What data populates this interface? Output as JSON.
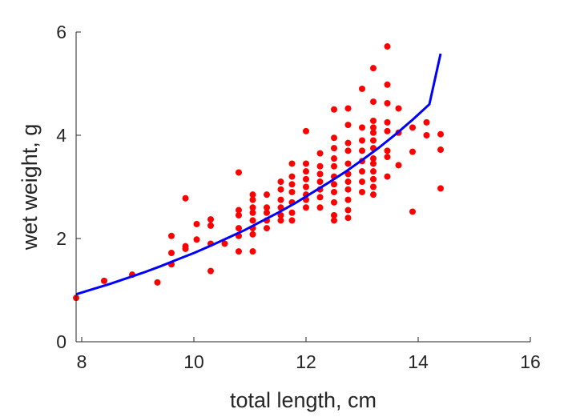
{
  "chart_data": {
    "type": "scatter",
    "xlabel": "total length, cm",
    "ylabel": "wet weight, g",
    "xlim": [
      7.9,
      16
    ],
    "ylim": [
      0,
      6
    ],
    "x_ticks": [
      "8",
      "10",
      "12",
      "14",
      "16"
    ],
    "y_ticks": [
      "0",
      "2",
      "4",
      "6"
    ],
    "x_tick_values": [
      8,
      10,
      12,
      14,
      16
    ],
    "y_tick_values": [
      0,
      2,
      4,
      6
    ],
    "grid": false,
    "legend": "none",
    "series": [
      {
        "kind": "scatter",
        "color": "#ff0000",
        "points": [
          [
            7.9,
            0.85
          ],
          [
            8.4,
            1.18
          ],
          [
            8.9,
            1.3
          ],
          [
            9.35,
            1.15
          ],
          [
            9.6,
            2.05
          ],
          [
            9.6,
            1.72
          ],
          [
            9.6,
            1.5
          ],
          [
            9.85,
            2.78
          ],
          [
            9.85,
            1.85
          ],
          [
            9.85,
            1.8
          ],
          [
            10.05,
            2.28
          ],
          [
            10.05,
            1.98
          ],
          [
            10.3,
            2.37
          ],
          [
            10.3,
            2.25
          ],
          [
            10.3,
            1.9
          ],
          [
            10.3,
            1.37
          ],
          [
            10.55,
            1.9
          ],
          [
            10.8,
            3.28
          ],
          [
            10.8,
            2.55
          ],
          [
            10.8,
            2.45
          ],
          [
            10.8,
            2.2
          ],
          [
            10.8,
            2.05
          ],
          [
            10.8,
            1.75
          ],
          [
            11.05,
            2.85
          ],
          [
            11.05,
            2.75
          ],
          [
            11.05,
            2.6
          ],
          [
            11.05,
            2.5
          ],
          [
            11.05,
            2.35
          ],
          [
            11.05,
            2.2
          ],
          [
            11.05,
            2.08
          ],
          [
            11.05,
            1.75
          ],
          [
            11.3,
            2.85
          ],
          [
            11.3,
            2.6
          ],
          [
            11.3,
            2.5
          ],
          [
            11.3,
            2.35
          ],
          [
            11.3,
            2.2
          ],
          [
            11.55,
            3.1
          ],
          [
            11.55,
            2.95
          ],
          [
            11.55,
            2.75
          ],
          [
            11.55,
            2.6
          ],
          [
            11.55,
            2.45
          ],
          [
            11.55,
            2.35
          ],
          [
            11.75,
            3.45
          ],
          [
            11.75,
            3.2
          ],
          [
            11.75,
            3.05
          ],
          [
            11.75,
            2.9
          ],
          [
            11.75,
            2.7
          ],
          [
            11.75,
            2.5
          ],
          [
            11.75,
            2.35
          ],
          [
            12.0,
            4.08
          ],
          [
            12.0,
            3.45
          ],
          [
            12.0,
            3.3
          ],
          [
            12.0,
            3.15
          ],
          [
            12.0,
            3.0
          ],
          [
            12.0,
            2.85
          ],
          [
            12.0,
            2.75
          ],
          [
            12.0,
            2.6
          ],
          [
            12.25,
            3.65
          ],
          [
            12.25,
            3.4
          ],
          [
            12.25,
            3.25
          ],
          [
            12.25,
            3.1
          ],
          [
            12.25,
            2.95
          ],
          [
            12.25,
            2.8
          ],
          [
            12.25,
            2.6
          ],
          [
            12.5,
            4.5
          ],
          [
            12.5,
            3.95
          ],
          [
            12.5,
            3.75
          ],
          [
            12.5,
            3.55
          ],
          [
            12.5,
            3.4
          ],
          [
            12.5,
            3.2
          ],
          [
            12.5,
            3.05
          ],
          [
            12.5,
            2.9
          ],
          [
            12.5,
            2.7
          ],
          [
            12.5,
            2.45
          ],
          [
            12.5,
            2.35
          ],
          [
            12.75,
            4.52
          ],
          [
            12.75,
            4.2
          ],
          [
            12.75,
            3.85
          ],
          [
            12.75,
            3.7
          ],
          [
            12.75,
            3.45
          ],
          [
            12.75,
            3.25
          ],
          [
            12.75,
            3.1
          ],
          [
            12.75,
            2.95
          ],
          [
            12.75,
            2.75
          ],
          [
            12.75,
            2.55
          ],
          [
            12.75,
            2.4
          ],
          [
            13.0,
            4.9
          ],
          [
            13.0,
            4.15
          ],
          [
            13.0,
            3.9
          ],
          [
            13.0,
            3.7
          ],
          [
            13.0,
            3.5
          ],
          [
            13.0,
            3.3
          ],
          [
            13.0,
            3.1
          ],
          [
            13.0,
            2.9
          ],
          [
            13.2,
            5.3
          ],
          [
            13.2,
            4.65
          ],
          [
            13.2,
            4.28
          ],
          [
            13.2,
            4.15
          ],
          [
            13.2,
            4.05
          ],
          [
            13.2,
            3.9
          ],
          [
            13.2,
            3.75
          ],
          [
            13.2,
            3.55
          ],
          [
            13.2,
            3.45
          ],
          [
            13.2,
            3.3
          ],
          [
            13.2,
            3.15
          ],
          [
            13.2,
            3.0
          ],
          [
            13.2,
            2.85
          ],
          [
            13.45,
            5.72
          ],
          [
            13.45,
            4.98
          ],
          [
            13.45,
            4.62
          ],
          [
            13.45,
            4.25
          ],
          [
            13.45,
            4.08
          ],
          [
            13.45,
            3.7
          ],
          [
            13.45,
            3.58
          ],
          [
            13.45,
            3.2
          ],
          [
            13.65,
            4.52
          ],
          [
            13.65,
            4.05
          ],
          [
            13.65,
            3.42
          ],
          [
            13.9,
            4.15
          ],
          [
            13.9,
            3.68
          ],
          [
            13.9,
            2.52
          ],
          [
            14.15,
            4.25
          ],
          [
            14.15,
            4.0
          ],
          [
            14.4,
            4.02
          ],
          [
            14.4,
            3.72
          ],
          [
            14.4,
            2.97
          ]
        ]
      },
      {
        "kind": "line",
        "color": "#0000ff",
        "x": [
          7.9,
          8.2,
          8.5,
          8.8,
          9.1,
          9.4,
          9.7,
          10.0,
          10.3,
          10.6,
          10.9,
          11.2,
          11.5,
          11.8,
          12.1,
          12.4,
          12.7,
          13.0,
          13.3,
          13.6,
          13.9,
          14.2,
          14.4
        ],
        "y": [
          0.92,
          1.02,
          1.12,
          1.23,
          1.34,
          1.46,
          1.59,
          1.72,
          1.86,
          2.01,
          2.16,
          2.33,
          2.5,
          2.68,
          2.88,
          3.08,
          3.29,
          3.52,
          3.76,
          4.02,
          4.3,
          4.6,
          5.58
        ]
      }
    ]
  }
}
